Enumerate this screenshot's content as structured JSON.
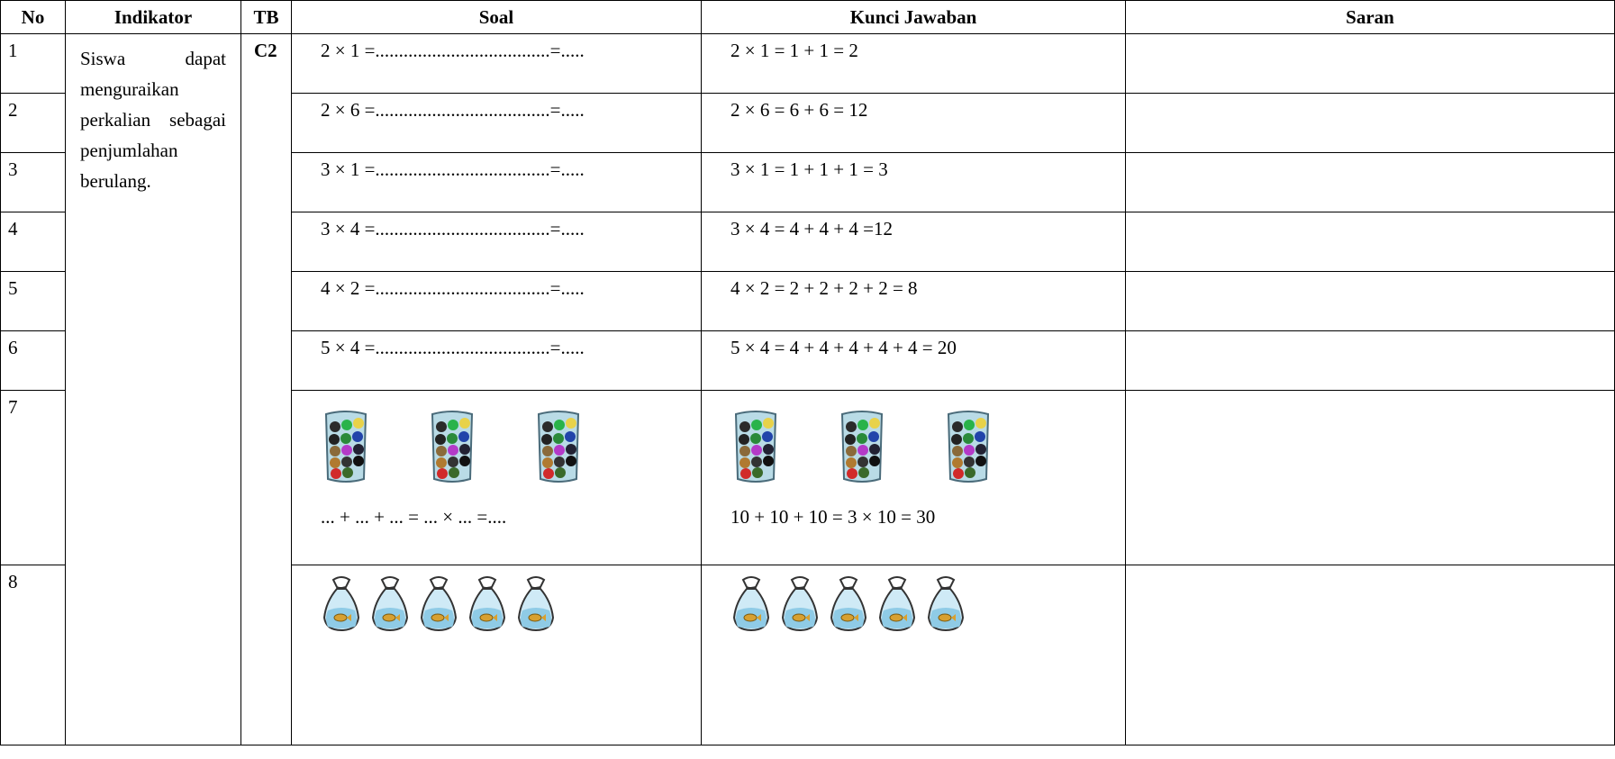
{
  "header": [
    "No",
    "Indikator",
    "TB",
    "Soal",
    "Kunci Jawaban",
    "Saran"
  ],
  "indicator": "Siswa dapat menguraikan perkalian sebagai penjumlahan berulang.",
  "tb": "C2",
  "rows": [
    {
      "no": "1",
      "soal": "2 × 1 =.....................................=.....",
      "kunci": "2 × 1 = 1 + 1 = 2"
    },
    {
      "no": "2",
      "soal": "2 × 6 =.....................................=.....",
      "kunci": "2 × 6 = 6 + 6 = 12"
    },
    {
      "no": "3",
      "soal": "3 × 1 =.....................................=.....",
      "kunci": "3 × 1 = 1 + 1 + 1 = 3"
    },
    {
      "no": "4",
      "soal": "3 × 4 =.....................................=.....",
      "kunci": "3 × 4 = 4 + 4 + 4 =12"
    },
    {
      "no": "5",
      "soal": "4 × 2 =.....................................=.....",
      "kunci": "4 × 2 = 2 + 2 + 2 + 2 = 8"
    },
    {
      "no": "6",
      "soal": "5 × 4 =.....................................=.....",
      "kunci": "5 × 4 = 4 + 4 + 4 + 4 + 4 = 20"
    },
    {
      "no": "7",
      "soal": "... + ... + ...  = ... × ... =....",
      "kunci": "10 + 10  + 10  = 3 × 10 = 30"
    },
    {
      "no": "8"
    }
  ]
}
